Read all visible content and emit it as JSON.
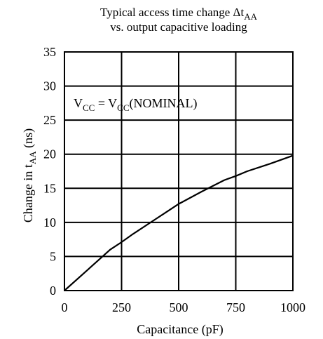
{
  "chart_data": {
    "type": "line",
    "title": {
      "line1_prefix": "Typical access time change Δt",
      "line1_sub": "AA",
      "line2": "vs. output capacitive loading"
    },
    "xlabel": "Capacitance (pF)",
    "ylabel": {
      "prefix": "Change in t",
      "sub": "AA",
      "suffix": " (ns)"
    },
    "annotation": {
      "part1": "V",
      "sub1": "CC",
      "part2": " = V",
      "sub2": "CC",
      "part3": "(NOMINAL)"
    },
    "xlim": [
      0,
      1000
    ],
    "ylim": [
      0,
      35
    ],
    "xticks": [
      0,
      250,
      500,
      750,
      1000
    ],
    "yticks": [
      0,
      5,
      10,
      15,
      20,
      25,
      30,
      35
    ],
    "xticklabels": [
      "0",
      "250",
      "500",
      "750",
      "1000"
    ],
    "yticklabels": [
      "0",
      "5",
      "10",
      "15",
      "20",
      "25",
      "30",
      "35"
    ],
    "grid": true,
    "series": [
      {
        "x": [
          0,
          100,
          200,
          250,
          300,
          400,
          450,
          500,
          600,
          700,
          750,
          800,
          900,
          1000
        ],
        "y": [
          0,
          3.0,
          6.0,
          7.1,
          8.3,
          10.5,
          11.6,
          12.7,
          14.5,
          16.2,
          16.8,
          17.5,
          18.6,
          19.8
        ]
      }
    ]
  }
}
